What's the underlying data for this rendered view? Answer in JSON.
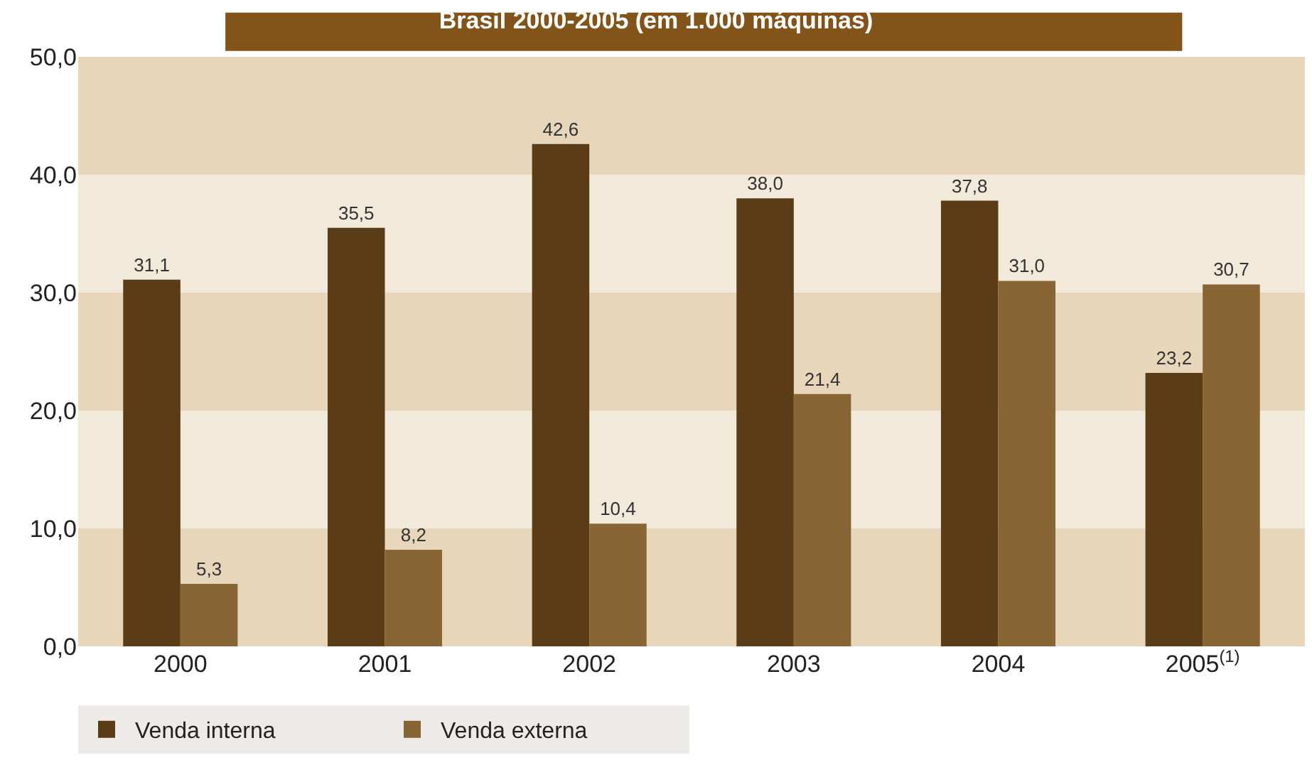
{
  "chart_data": {
    "type": "bar",
    "title": "Brasil 2000-2005 (em 1.000 máquinas)",
    "categories": [
      "2000",
      "2001",
      "2002",
      "2003",
      "2004",
      "2005$^{(1)}$"
    ],
    "series": [
      {
        "name": "Venda interna",
        "color": "#5a3c16",
        "values": [
          31.1,
          35.5,
          42.6,
          38.0,
          37.8,
          23.2
        ],
        "value_labels": [
          "31,1",
          "35,5",
          "42,6",
          "38,0",
          "37,8",
          "23,2"
        ]
      },
      {
        "name": "Venda externa",
        "color": "#876534",
        "values": [
          5.3,
          8.2,
          10.4,
          21.4,
          31.0,
          30.7
        ],
        "value_labels": [
          "5,3",
          "8,2",
          "10,4",
          "21,4",
          "31,0",
          "30,7"
        ]
      }
    ],
    "ylim": [
      0,
      50
    ],
    "yticks": [
      {
        "value": 0,
        "label": "0,0"
      },
      {
        "value": 10,
        "label": "10,0"
      },
      {
        "value": 20,
        "label": "20,0"
      },
      {
        "value": 30,
        "label": "30,0"
      },
      {
        "value": 40,
        "label": "40,0"
      },
      {
        "value": 50,
        "label": "50,0"
      }
    ],
    "bands": [
      {
        "axis": "y",
        "from": 0,
        "to": 10,
        "color": "#e8d6ba"
      },
      {
        "axis": "y",
        "from": 10,
        "to": 20,
        "color": "#f1e9da"
      },
      {
        "axis": "y",
        "from": 20,
        "to": 30,
        "color": "#e8d6ba"
      },
      {
        "axis": "y",
        "from": 30,
        "to": 40,
        "color": "#f1e9da"
      },
      {
        "axis": "y",
        "from": 40,
        "to": 50,
        "color": "#e8d6ba"
      }
    ],
    "grid": false,
    "legend": "bottom left"
  }
}
